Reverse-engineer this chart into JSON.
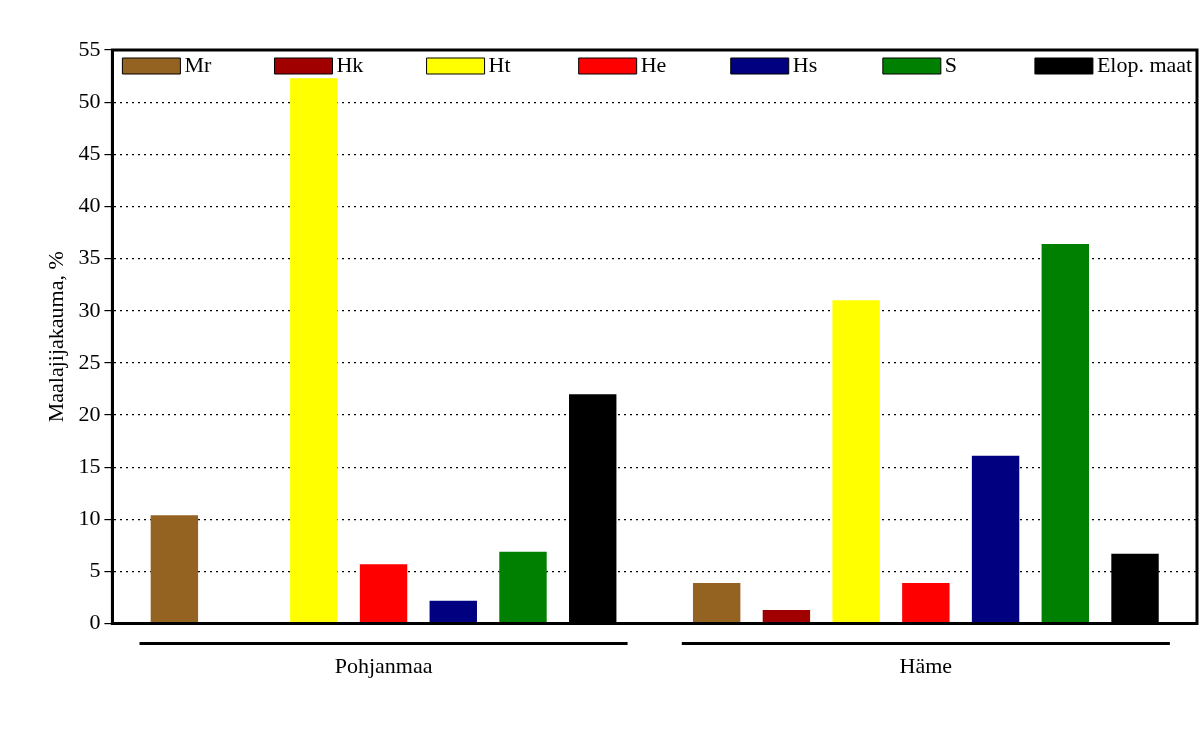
{
  "chart_data": {
    "type": "bar",
    "ylabel": "Maalajijakauma, %",
    "categories": [
      "Pohjanmaa",
      "Häme"
    ],
    "series": [
      {
        "name": "Mr",
        "color": "#956321",
        "values": [
          10.4,
          3.9
        ]
      },
      {
        "name": "Hk",
        "color": "#a00000",
        "values": [
          0,
          1.3
        ]
      },
      {
        "name": "Ht",
        "color": "#ffff00",
        "values": [
          52.3,
          31.0
        ]
      },
      {
        "name": "He",
        "color": "#ff0000",
        "values": [
          5.7,
          3.9
        ]
      },
      {
        "name": "Hs",
        "color": "#000080",
        "values": [
          2.2,
          16.1
        ]
      },
      {
        "name": "S",
        "color": "#008000",
        "values": [
          6.9,
          36.4
        ]
      },
      {
        "name": "Elop. maat",
        "color": "#000000",
        "values": [
          22.0,
          6.7
        ]
      }
    ],
    "ylim": [
      0,
      55
    ],
    "yticks": [
      0,
      5,
      10,
      15,
      20,
      25,
      30,
      35,
      40,
      45,
      50,
      55
    ],
    "grid": "y",
    "legend": "top"
  }
}
